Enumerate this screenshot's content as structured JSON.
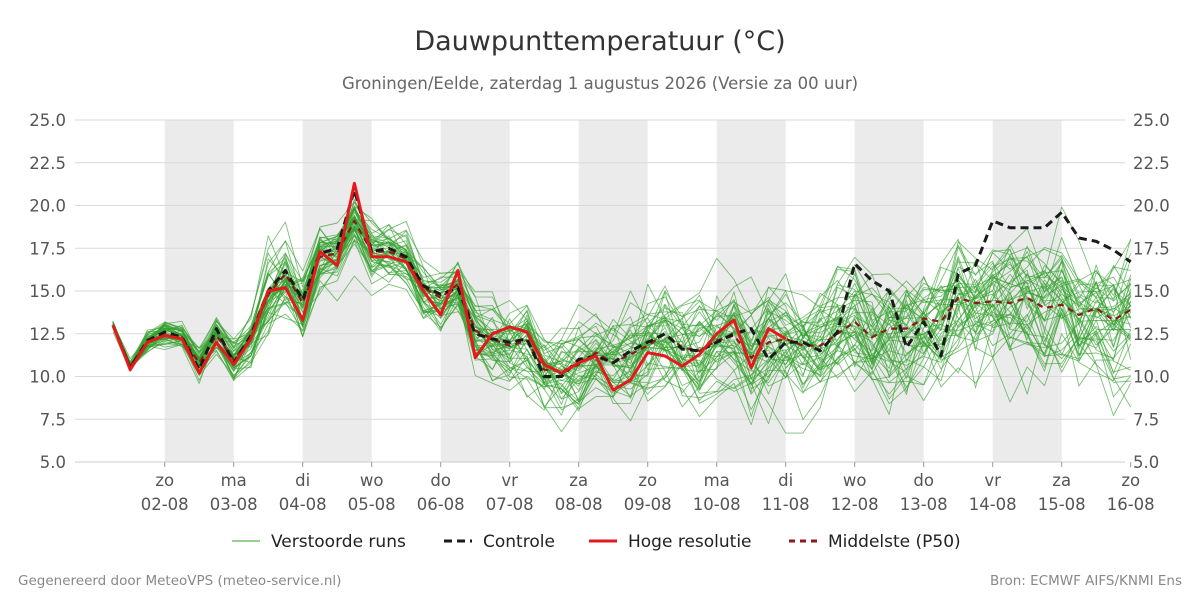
{
  "chart_data": {
    "type": "line",
    "title": "Dauwpunttemperatuur (°C)",
    "subtitle": "Groningen/Eelde, zaterdag  1 augustus 2026 (Versie za 00 uur)",
    "ylim": [
      5.0,
      25.0
    ],
    "y_ticks": [
      "5.0",
      "7.5",
      "10.0",
      "12.5",
      "15.0",
      "17.5",
      "20.0",
      "22.5",
      "25.0"
    ],
    "y_tick_values": [
      5,
      7.5,
      10,
      12.5,
      15,
      17.5,
      20,
      22.5,
      25
    ],
    "x_start_day": 1.25,
    "x_end_day": 16.0,
    "step_days": 0.25,
    "x_ticks": [
      {
        "day": 2,
        "weekday": "zo",
        "date": "02-08"
      },
      {
        "day": 3,
        "weekday": "ma",
        "date": "03-08"
      },
      {
        "day": 4,
        "weekday": "di",
        "date": "04-08"
      },
      {
        "day": 5,
        "weekday": "wo",
        "date": "05-08"
      },
      {
        "day": 6,
        "weekday": "do",
        "date": "06-08"
      },
      {
        "day": 7,
        "weekday": "vr",
        "date": "07-08"
      },
      {
        "day": 8,
        "weekday": "za",
        "date": "08-08"
      },
      {
        "day": 9,
        "weekday": "zo",
        "date": "09-08"
      },
      {
        "day": 10,
        "weekday": "ma",
        "date": "10-08"
      },
      {
        "day": 11,
        "weekday": "di",
        "date": "11-08"
      },
      {
        "day": 12,
        "weekday": "wo",
        "date": "12-08"
      },
      {
        "day": 13,
        "weekday": "do",
        "date": "13-08"
      },
      {
        "day": 14,
        "weekday": "vr",
        "date": "14-08"
      },
      {
        "day": 15,
        "weekday": "za",
        "date": "15-08"
      },
      {
        "day": 16,
        "weekday": "zo",
        "date": "16-08"
      }
    ],
    "shaded_days": [
      [
        2,
        3
      ],
      [
        4,
        5
      ],
      [
        6,
        7
      ],
      [
        8,
        9
      ],
      [
        10,
        11
      ],
      [
        12,
        13
      ],
      [
        14,
        15
      ]
    ],
    "grid": true,
    "legend_placement": "bottom",
    "ensemble": {
      "name": "Verstoorde runs",
      "members": 50,
      "color": "#33a02c",
      "seed": 17,
      "spread": [
        0.2,
        0.3,
        0.5,
        0.6,
        0.6,
        0.7,
        0.7,
        1.0,
        1.1,
        1.6,
        1.5,
        1.3,
        1.3,
        1.1,
        1.0,
        1.1,
        1.1,
        1.0,
        1.1,
        1.1,
        1.2,
        1.3,
        1.4,
        1.5,
        1.6,
        1.6,
        1.6,
        1.7,
        1.8,
        1.8,
        1.9,
        2.0,
        2.0,
        2.0,
        2.1,
        2.1,
        2.2,
        2.2,
        2.2,
        2.2,
        2.3,
        2.3,
        2.3,
        2.3,
        2.4,
        2.4,
        2.4,
        2.4,
        2.5,
        2.5,
        2.5,
        2.5,
        2.5,
        2.6,
        2.6,
        2.6,
        2.6,
        2.6,
        2.7,
        2.7
      ]
    },
    "series": [
      {
        "name": "Controle",
        "color": "#1a1a1a",
        "dash": "8,5",
        "values": [
          13.0,
          10.5,
          12.1,
          12.6,
          12.3,
          10.4,
          12.8,
          10.8,
          12.4,
          15.0,
          16.2,
          14.5,
          17.2,
          17.5,
          20.9,
          17.3,
          17.5,
          17.0,
          15.3,
          14.8,
          15.2,
          12.5,
          12.2,
          12.0,
          12.2,
          10.0,
          10.0,
          11.0,
          11.2,
          10.8,
          11.5,
          12.0,
          12.5,
          11.6,
          11.5,
          12.0,
          12.5,
          12.8,
          11.0,
          12.0,
          12.0,
          11.5,
          12.6,
          16.6,
          15.6,
          15.0,
          11.7,
          13.2,
          11.2,
          16.0,
          16.5,
          19.1,
          18.7,
          18.7,
          18.7,
          19.6,
          18.1,
          17.9,
          17.4,
          16.7
        ]
      },
      {
        "name": "Hoge resolutie",
        "color": "#e31a1c",
        "dash": "",
        "values": [
          13.0,
          10.4,
          12.0,
          12.4,
          12.2,
          10.2,
          12.0,
          10.7,
          12.2,
          15.0,
          15.2,
          13.3,
          17.3,
          16.5,
          21.3,
          17.0,
          17.0,
          16.7,
          15.0,
          13.6,
          16.2,
          11.1,
          12.5,
          12.9,
          12.6,
          10.7,
          10.2,
          10.8,
          11.2,
          9.2,
          9.8,
          11.4,
          11.2,
          10.6,
          11.3,
          12.5,
          13.3,
          10.5,
          12.8,
          12.2
        ]
      },
      {
        "name": "Middelste (P50)",
        "color": "#8b1a1a",
        "dash": "6,5",
        "values": [
          13.0,
          10.6,
          12.0,
          12.5,
          12.3,
          10.8,
          12.4,
          11.0,
          12.2,
          14.8,
          16.0,
          14.3,
          17.0,
          17.2,
          19.1,
          17.3,
          17.3,
          16.9,
          15.2,
          14.6,
          15.4,
          12.7,
          12.2,
          11.8,
          12.1,
          10.4,
          10.3,
          10.7,
          11.4,
          10.8,
          11.3,
          11.8,
          12.5,
          11.7,
          11.5,
          12.1,
          12.4,
          11.1,
          12.0,
          12.2,
          11.8,
          11.8,
          12.5,
          13.2,
          12.3,
          12.8,
          12.8,
          13.4,
          13.2,
          14.6,
          14.3,
          14.4,
          14.3,
          14.6,
          14.0,
          14.2,
          13.6,
          14.0,
          13.3,
          13.9
        ]
      }
    ]
  },
  "legend": [
    {
      "label": "Verstoorde runs",
      "color": "#33a02c",
      "dash": "",
      "thin": true
    },
    {
      "label": "Controle",
      "color": "#1a1a1a",
      "dash": "8,5",
      "thin": false
    },
    {
      "label": "Hoge resolutie",
      "color": "#e31a1c",
      "dash": "",
      "thin": false
    },
    {
      "label": "Middelste (P50)",
      "color": "#8b1a1a",
      "dash": "6,5",
      "thin": false
    }
  ],
  "footer": {
    "left": "Gegenereerd door MeteoVPS (meteo-service.nl)",
    "right": "Bron: ECMWF AIFS/KNMI Ens"
  }
}
